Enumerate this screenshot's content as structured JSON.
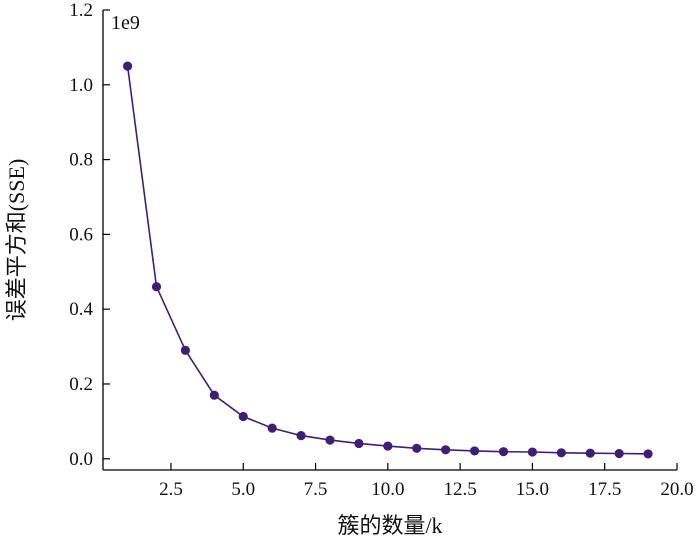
{
  "chart_data": {
    "type": "line",
    "title": "",
    "xlabel": "簇的数量/k",
    "ylabel": "误差平方和(SSE)",
    "y_multiplier": "1e9",
    "xlim": [
      0.15,
      20.0
    ],
    "ylim": [
      -0.03,
      1.2
    ],
    "xticks": [
      "2.5",
      "5.0",
      "7.5",
      "10.0",
      "12.5",
      "15.0",
      "17.5",
      "20.0"
    ],
    "yticks": [
      "0.0",
      "0.2",
      "0.4",
      "0.6",
      "0.8",
      "1.0",
      "1.2"
    ],
    "grid": false,
    "legend": "none",
    "color": "#3e1f73",
    "series": [
      {
        "x": [
          1,
          2,
          3,
          4,
          5,
          6,
          7,
          8,
          9,
          10,
          11,
          12,
          13,
          14,
          15,
          16,
          17,
          18,
          19
        ],
        "y": [
          1.05,
          0.46,
          0.29,
          0.17,
          0.113,
          0.082,
          0.062,
          0.05,
          0.041,
          0.034,
          0.028,
          0.024,
          0.021,
          0.019,
          0.018,
          0.016,
          0.015,
          0.014,
          0.013
        ]
      }
    ]
  }
}
